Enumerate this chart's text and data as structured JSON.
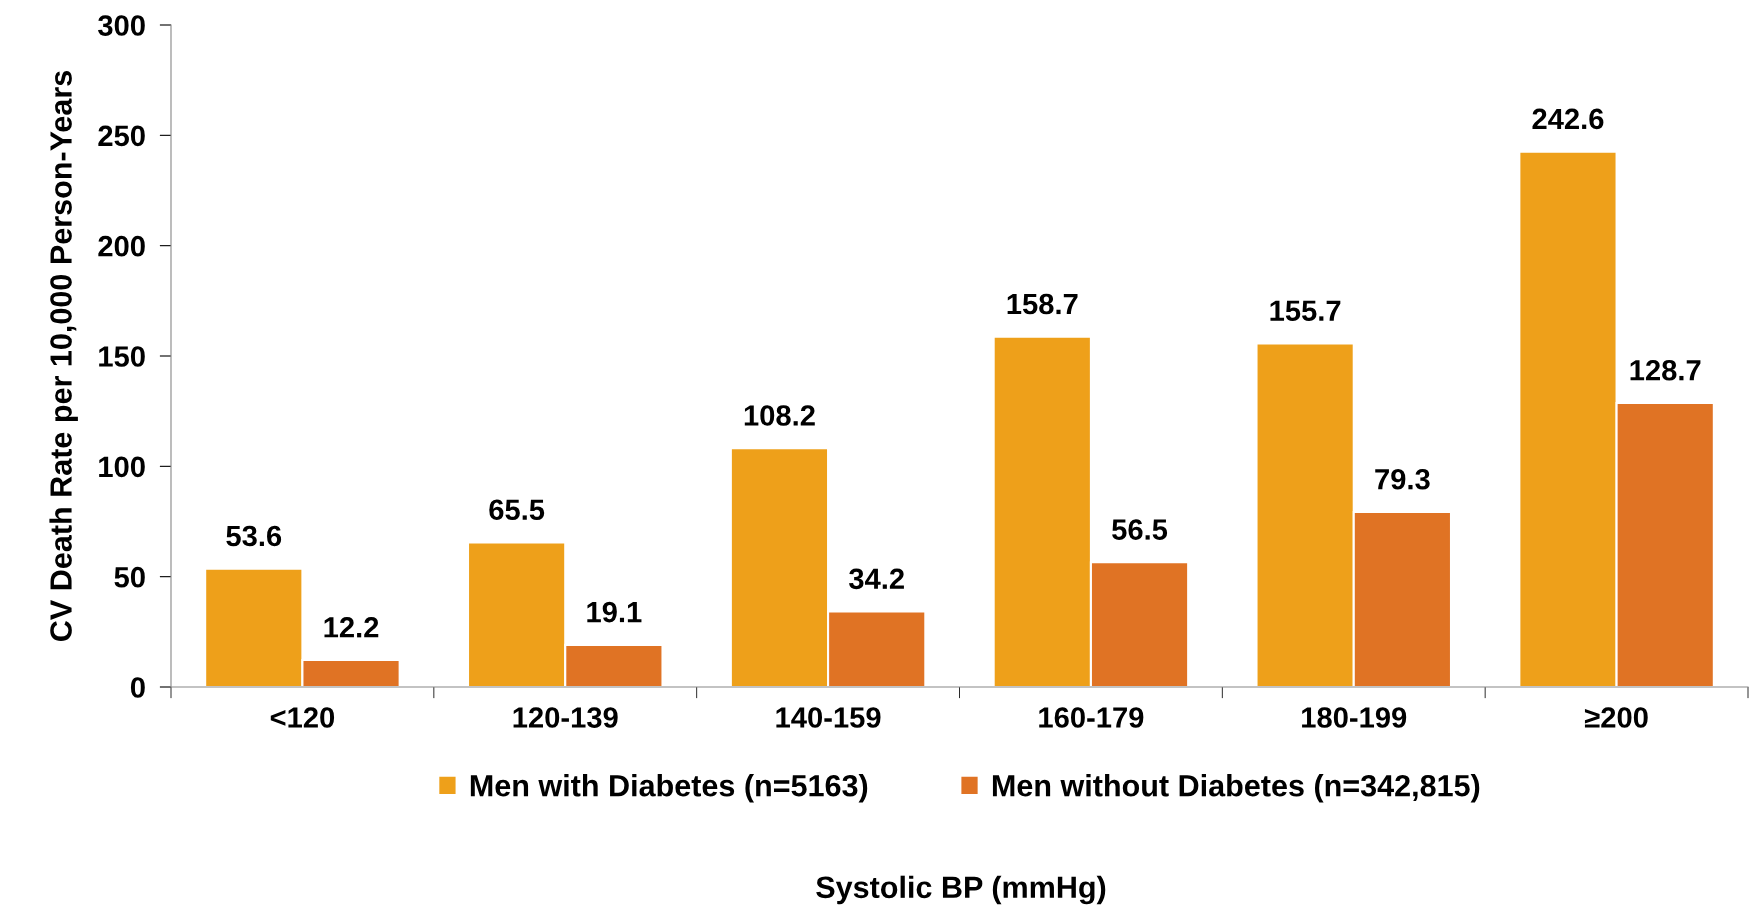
{
  "chart_data": {
    "type": "bar",
    "xlabel": "Systolic BP (mmHg)",
    "ylabel": "CV Death Rate per 10,000 Person-Years",
    "categories": [
      "<120",
      "120-139",
      "140-159",
      "160-179",
      "180-199",
      "≥200"
    ],
    "series": [
      {
        "name": "Men with Diabetes (n=5163)",
        "color": "#eea01a",
        "values": [
          53.6,
          65.5,
          108.2,
          158.7,
          155.7,
          242.6
        ]
      },
      {
        "name": "Men without Diabetes (n=342,815)",
        "color": "#e07324",
        "values": [
          12.2,
          19.1,
          34.2,
          56.5,
          79.3,
          128.7
        ]
      }
    ],
    "ylim": [
      0,
      300
    ],
    "yticks": [
      0,
      50,
      100,
      150,
      200,
      250,
      300
    ],
    "data_labels": true,
    "grid": false,
    "legend": "bottom"
  }
}
